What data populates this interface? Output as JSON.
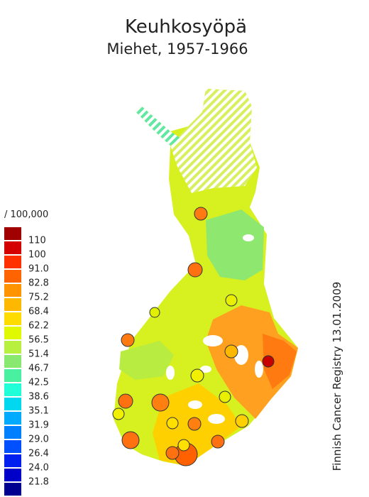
{
  "header": {
    "title": "Keuhkosyöpä",
    "subtitle": "Miehet, 1957-1966"
  },
  "legend": {
    "unit": "/ 100,000",
    "colors": [
      "#a00000",
      "#d40000",
      "#ff3000",
      "#ff6400",
      "#ff9400",
      "#ffb800",
      "#ffdc00",
      "#e0f800",
      "#b8f040",
      "#88e870",
      "#48f0a0",
      "#20ffd8",
      "#00d8f0",
      "#00aaff",
      "#0080ff",
      "#0050ff",
      "#0020f0",
      "#0000c8",
      "#000090"
    ],
    "ticks": [
      110,
      100,
      {
        "value": 91,
        "label": "91.0"
      },
      82.8,
      75.2,
      68.4,
      62.2,
      56.5,
      51.4,
      46.7,
      42.5,
      38.6,
      35.1,
      31.9,
      {
        "value": 29,
        "label": "29.0"
      },
      26.4,
      {
        "value": 24,
        "label": "24.0"
      },
      21.8
    ]
  },
  "credit": "Finnish Cancer Registry 13.01.2009"
}
